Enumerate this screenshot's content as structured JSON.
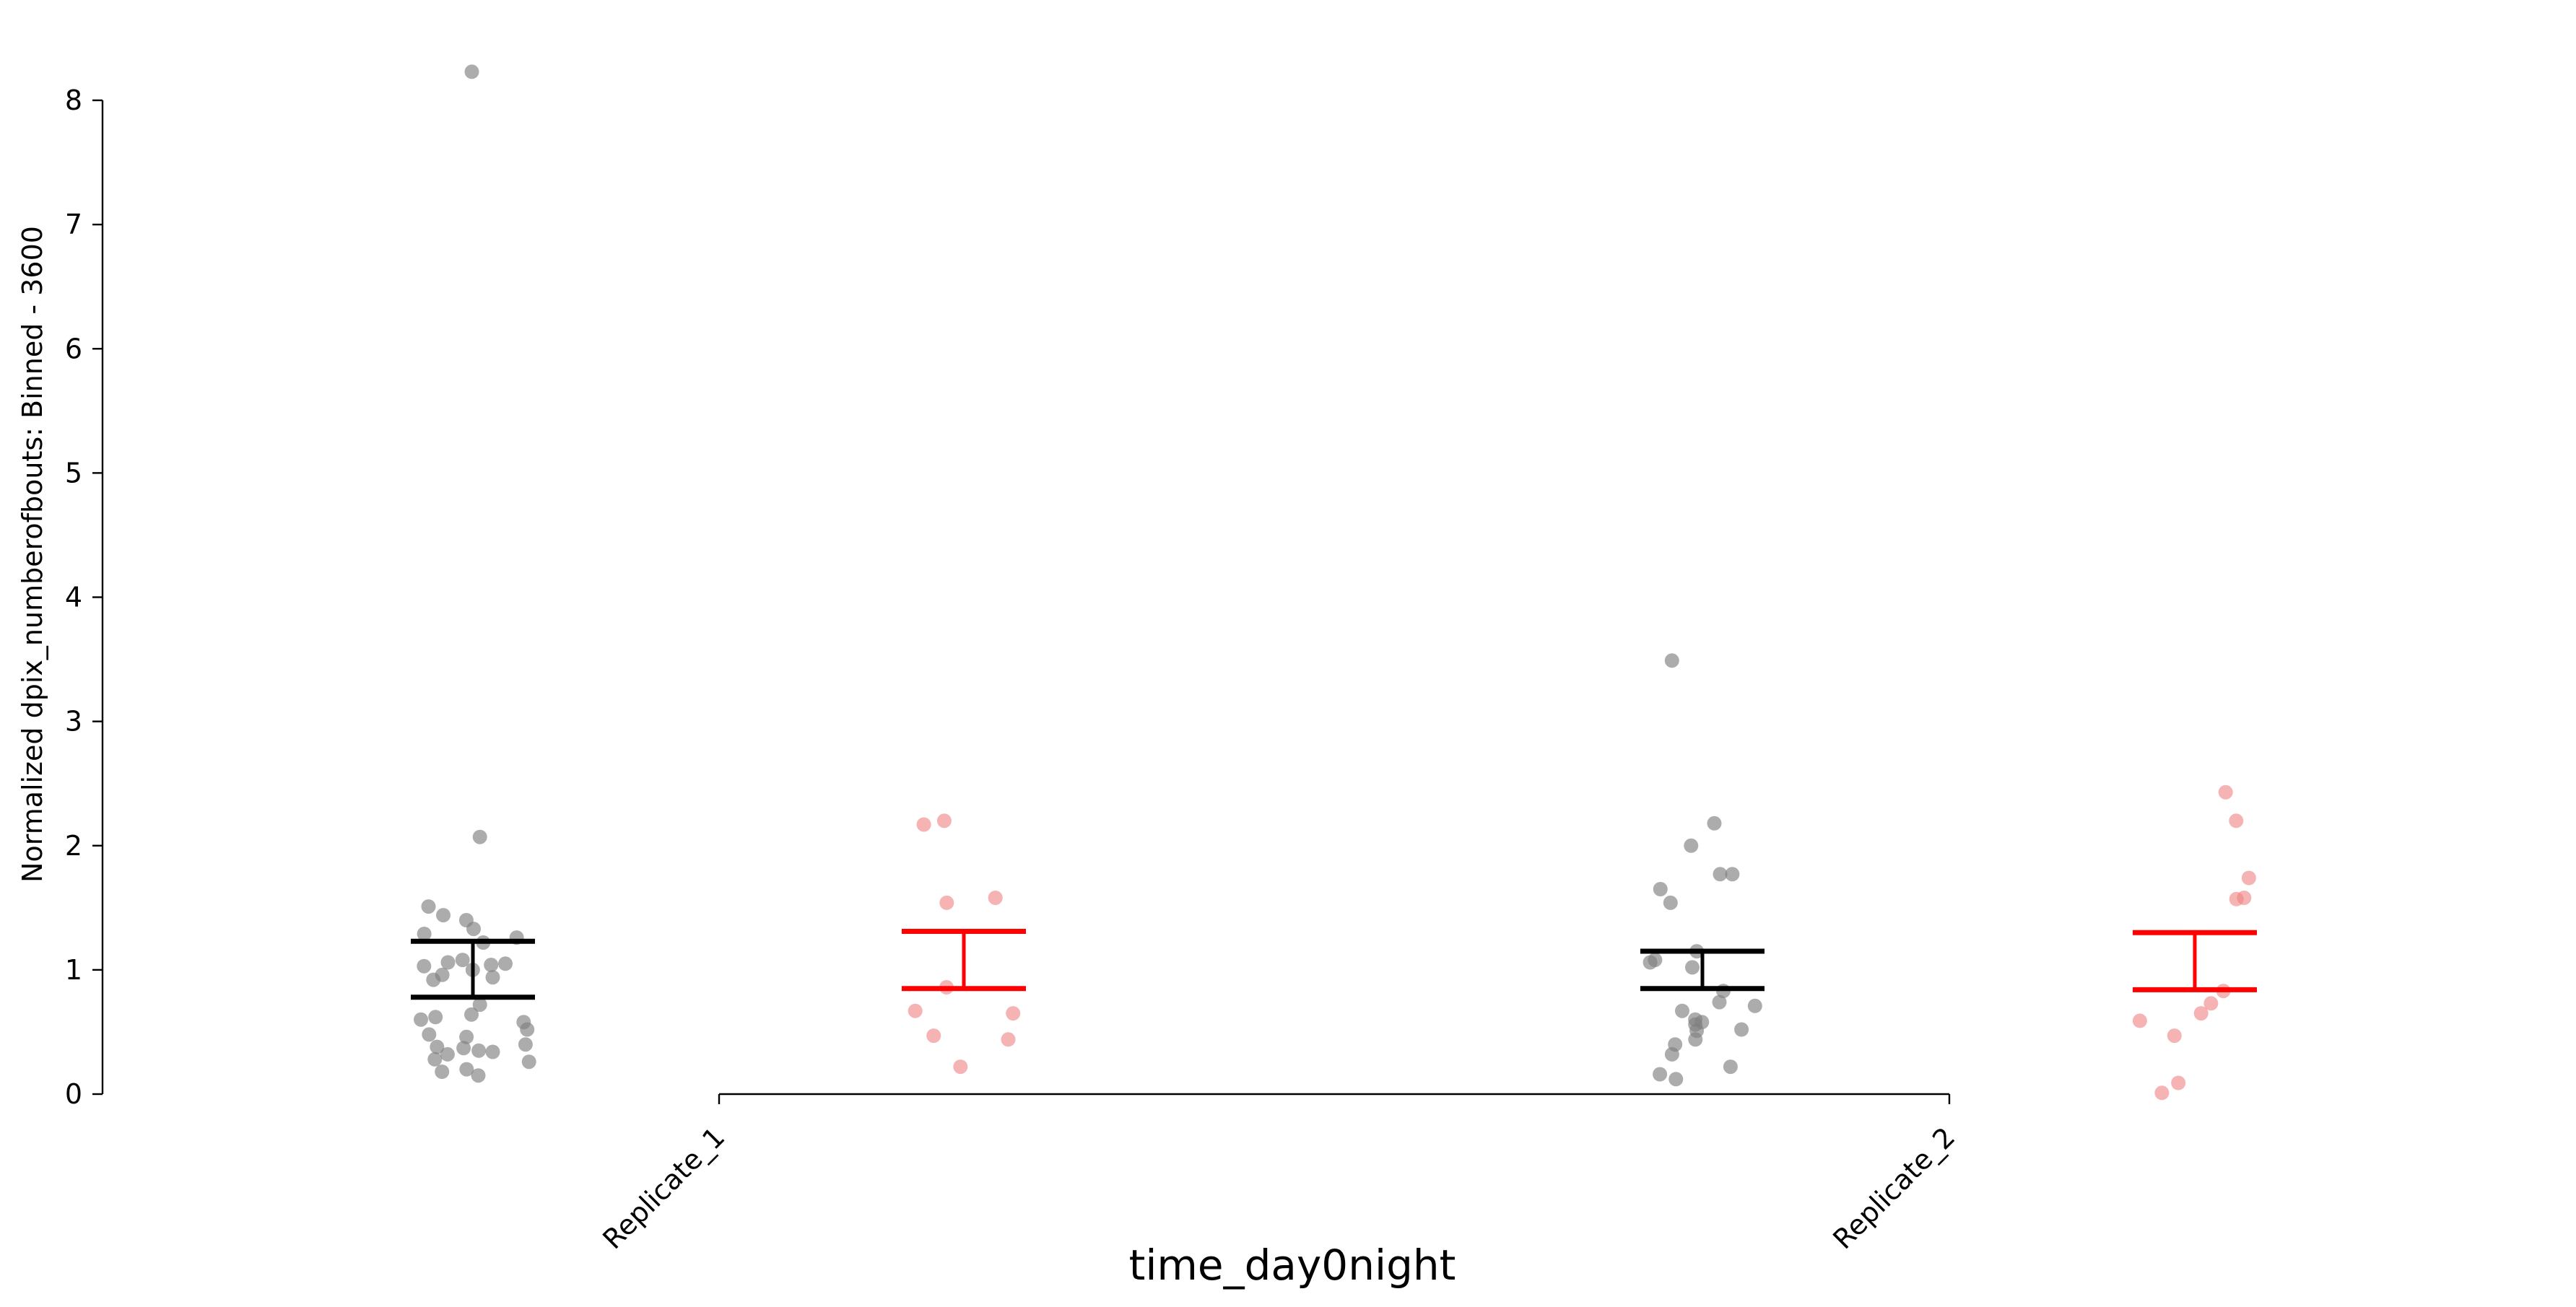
{
  "chart_data": {
    "type": "scatter",
    "xlabel": "time_day0night",
    "ylabel": "Normalized dpix_numberofbouts: Binned - 3600",
    "ylim": [
      0,
      8
    ],
    "yticks": [
      0,
      1,
      2,
      3,
      4,
      5,
      6,
      7,
      8
    ],
    "categories": [
      "Replicate_1",
      "Replicate_2"
    ],
    "groups": [
      {
        "category": "Replicate_1",
        "color": "#7f7f7f",
        "error_color": "#000000",
        "error_low": 0.78,
        "error_high": 1.23,
        "values": [
          8.23,
          2.07,
          1.51,
          1.44,
          1.4,
          1.33,
          1.29,
          1.26,
          1.22,
          1.08,
          1.06,
          1.05,
          1.04,
          1.03,
          1.0,
          0.96,
          0.94,
          0.92,
          0.72,
          0.64,
          0.62,
          0.6,
          0.58,
          0.52,
          0.48,
          0.46,
          0.4,
          0.38,
          0.37,
          0.35,
          0.34,
          0.32,
          0.28,
          0.26,
          0.2,
          0.18,
          0.15
        ]
      },
      {
        "category": "Replicate_1",
        "color": "#f08080",
        "error_color": "#ff0000",
        "error_low": 0.85,
        "error_high": 1.31,
        "values": [
          2.2,
          2.17,
          1.58,
          1.54,
          0.86,
          0.67,
          0.65,
          0.47,
          0.44,
          0.22
        ]
      },
      {
        "category": "Replicate_2",
        "color": "#7f7f7f",
        "error_color": "#000000",
        "error_low": 0.85,
        "error_high": 1.15,
        "values": [
          3.49,
          2.18,
          2.0,
          1.77,
          1.77,
          1.65,
          1.54,
          1.15,
          1.08,
          1.06,
          1.02,
          0.83,
          0.74,
          0.71,
          0.67,
          0.6,
          0.58,
          0.56,
          0.52,
          0.51,
          0.44,
          0.4,
          0.32,
          0.22,
          0.16,
          0.12
        ]
      },
      {
        "category": "Replicate_2",
        "color": "#f08080",
        "error_color": "#ff0000",
        "error_low": 0.84,
        "error_high": 1.3,
        "values": [
          2.43,
          2.2,
          1.74,
          1.58,
          1.57,
          0.83,
          0.73,
          0.65,
          0.59,
          0.47,
          0.09,
          0.01
        ]
      }
    ]
  }
}
